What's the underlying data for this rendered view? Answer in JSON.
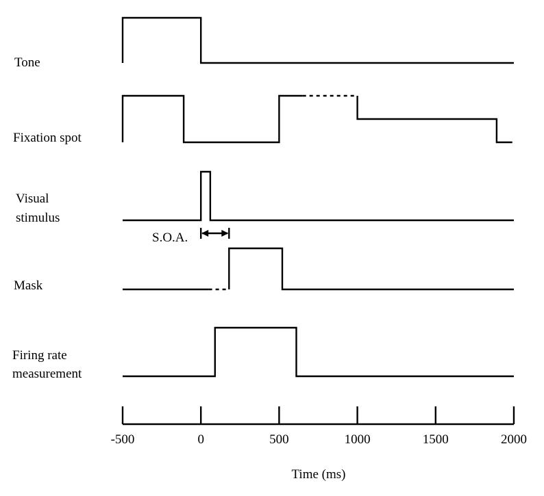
{
  "axis": {
    "label": "Time (ms)",
    "min": -500,
    "max": 2000,
    "ticks": [
      {
        "value": -500,
        "label": "-500"
      },
      {
        "value": 0,
        "label": "0"
      },
      {
        "value": 500,
        "label": "500"
      },
      {
        "value": 1000,
        "label": "1000"
      },
      {
        "value": 1500,
        "label": "1500"
      },
      {
        "value": 2000,
        "label": "2000"
      }
    ]
  },
  "rows": [
    {
      "id": "tone",
      "label_lines": [
        "Tone"
      ],
      "segments": [
        {
          "style": "solid",
          "points": [
            [
              -500,
              0
            ],
            [
              -500,
              1
            ],
            [
              0,
              1
            ],
            [
              0,
              0
            ],
            [
              2000,
              0
            ]
          ]
        }
      ]
    },
    {
      "id": "fixation-spot",
      "label_lines": [
        "Fixation spot"
      ],
      "segments": [
        {
          "style": "solid",
          "points": [
            [
              -500,
              0
            ],
            [
              -500,
              2
            ],
            [
              -110,
              2
            ],
            [
              -110,
              0
            ],
            [
              500,
              0
            ],
            [
              500,
              2
            ],
            [
              650,
              2
            ]
          ]
        },
        {
          "style": "dashed",
          "points": [
            [
              650,
              2
            ],
            [
              1000,
              2
            ]
          ]
        },
        {
          "style": "solid",
          "points": [
            [
              1000,
              2
            ],
            [
              1000,
              1
            ],
            [
              1890,
              1
            ],
            [
              1890,
              0
            ],
            [
              1990,
              0
            ]
          ]
        }
      ]
    },
    {
      "id": "visual-stimulus",
      "label_lines": [
        "Visual",
        "stimulus"
      ],
      "segments": [
        {
          "style": "solid",
          "points": [
            [
              -500,
              0
            ],
            [
              0,
              0
            ],
            [
              0,
              1
            ],
            [
              60,
              1
            ],
            [
              60,
              0
            ],
            [
              2000,
              0
            ]
          ]
        }
      ]
    },
    {
      "id": "mask",
      "label_lines": [
        "Mask"
      ],
      "segments": [
        {
          "style": "solid",
          "points": [
            [
              -500,
              0
            ],
            [
              50,
              0
            ]
          ]
        },
        {
          "style": "dashed",
          "points": [
            [
              50,
              0
            ],
            [
              180,
              0
            ]
          ]
        },
        {
          "style": "solid",
          "points": [
            [
              180,
              0
            ],
            [
              180,
              1
            ],
            [
              520,
              1
            ],
            [
              520,
              0
            ],
            [
              2000,
              0
            ]
          ]
        }
      ]
    },
    {
      "id": "firing-rate-measurement",
      "label_lines": [
        "Firing rate",
        "measurement"
      ],
      "segments": [
        {
          "style": "solid",
          "points": [
            [
              -500,
              0
            ],
            [
              90,
              0
            ],
            [
              90,
              1
            ],
            [
              610,
              1
            ],
            [
              610,
              0
            ],
            [
              2000,
              0
            ]
          ]
        }
      ]
    }
  ],
  "soa": {
    "label": "S.O.A.",
    "from": 0,
    "to": 180
  }
}
